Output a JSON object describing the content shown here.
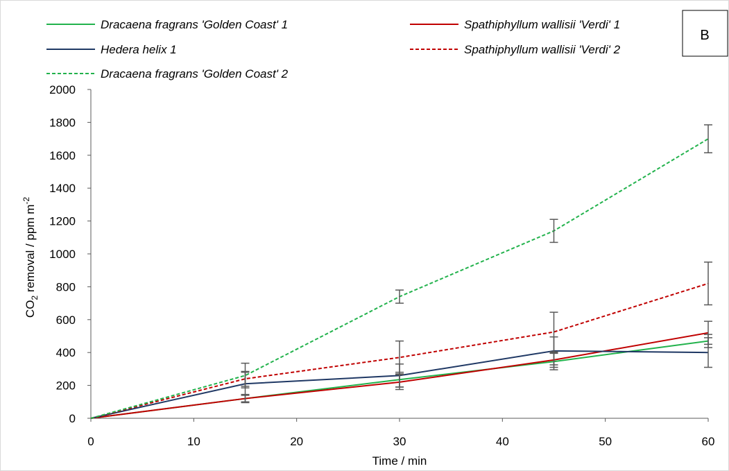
{
  "chart_data": {
    "type": "line",
    "panel_label": "B",
    "xlabel": "Time / min",
    "ylabel": {
      "prefix": "CO",
      "sub": "2",
      "middle": " removal  / ppm m",
      "sup": "-2"
    },
    "x": [
      0,
      15,
      30,
      45,
      60
    ],
    "xlim": [
      0,
      60
    ],
    "ylim": [
      0,
      2000
    ],
    "xticks": [
      0,
      10,
      20,
      30,
      40,
      50,
      60
    ],
    "yticks": [
      0,
      200,
      400,
      600,
      800,
      1000,
      1200,
      1400,
      1600,
      1800,
      2000
    ],
    "grid": false,
    "legend_position": "top",
    "series": [
      {
        "name": "Dracaena fragrans 'Golden Coast' 1",
        "color": "#22b24c",
        "dash": "solid",
        "values": [
          0,
          120,
          235,
          345,
          470
        ],
        "errors": [
          0,
          25,
          45,
          50,
          40
        ]
      },
      {
        "name": "Spathiphyllum wallisii 'Verdi' 1",
        "color": "#c00000",
        "dash": "solid",
        "values": [
          0,
          120,
          220,
          355,
          520
        ],
        "errors": [
          0,
          20,
          45,
          45,
          70
        ]
      },
      {
        "name": "Hedera helix 1",
        "color": "#1f3864",
        "dash": "solid",
        "values": [
          0,
          210,
          260,
          410,
          400
        ],
        "errors": [
          0,
          70,
          70,
          85,
          90
        ]
      },
      {
        "name": "Spathiphyllum wallisii 'Verdi' 2",
        "color": "#c00000",
        "dash": "dashed",
        "values": [
          0,
          240,
          370,
          525,
          820
        ],
        "errors": [
          0,
          45,
          100,
          120,
          130
        ]
      },
      {
        "name": "Dracaena fragrans 'Golden Coast' 2",
        "color": "#22b24c",
        "dash": "dashed",
        "values": [
          0,
          260,
          740,
          1140,
          1700
        ],
        "errors": [
          0,
          75,
          40,
          70,
          85
        ]
      }
    ]
  }
}
